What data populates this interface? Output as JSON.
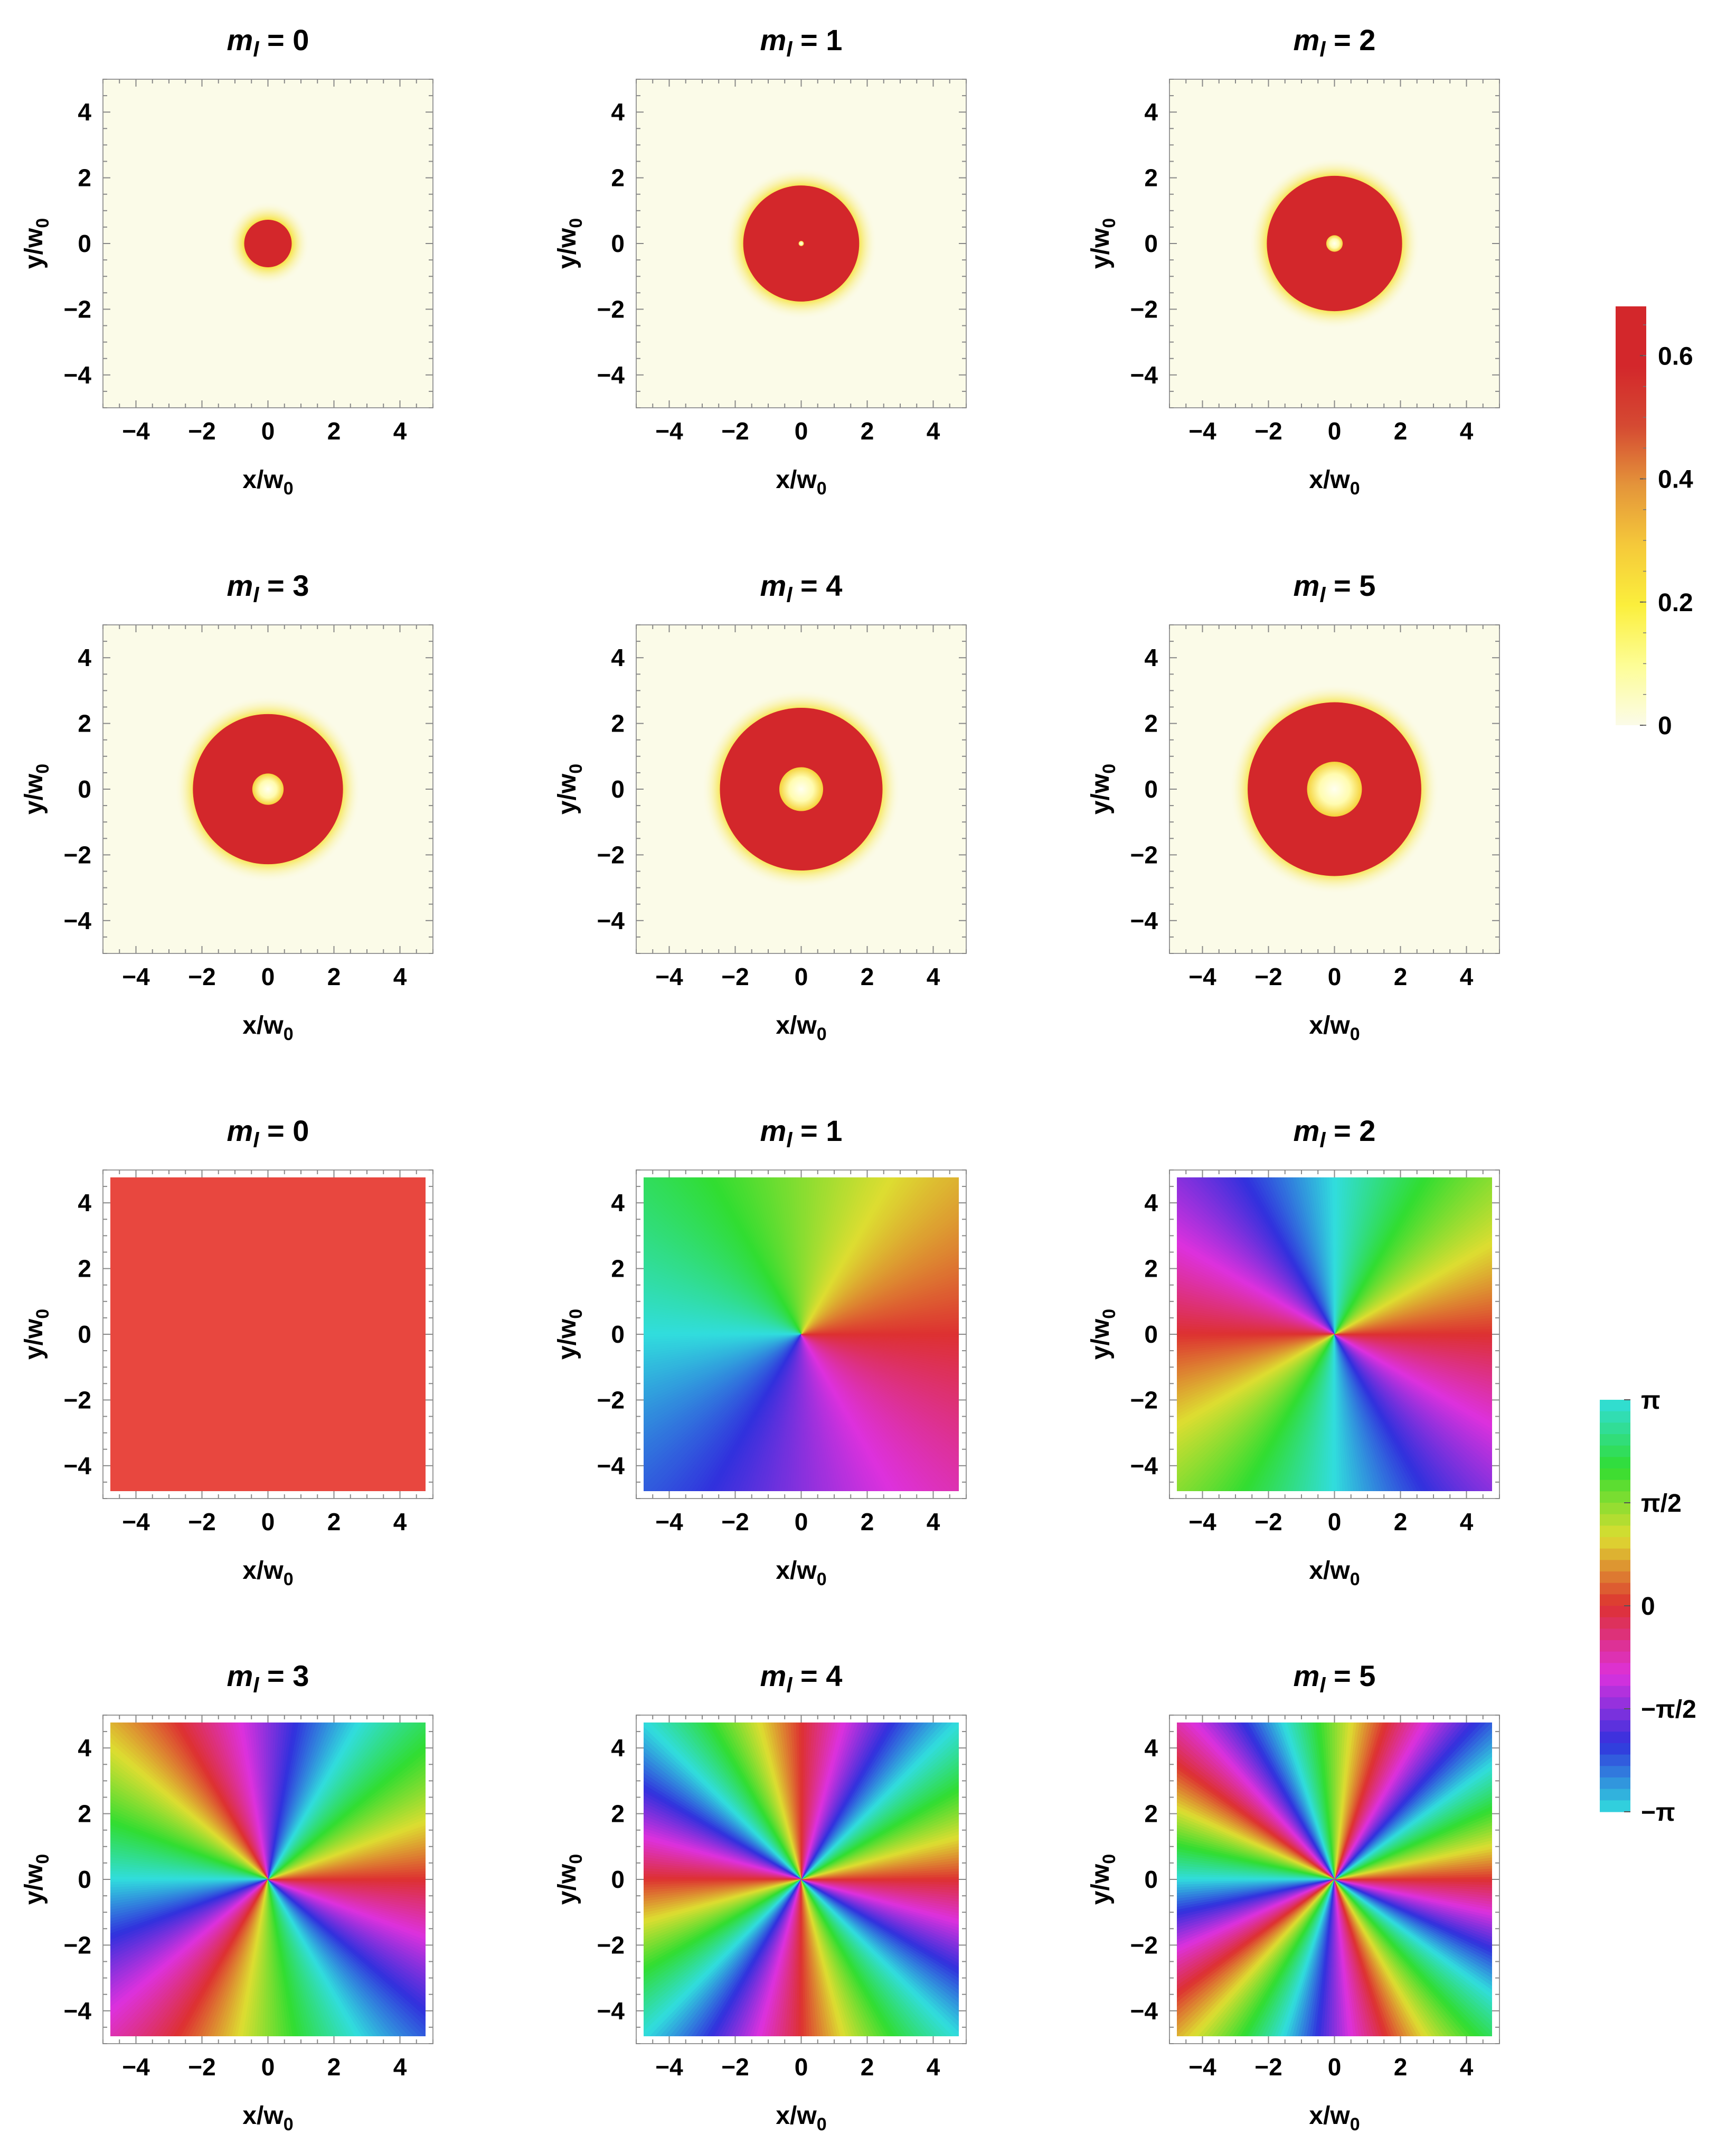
{
  "chart_data": [
    {
      "type": "heatmap",
      "quantity": "intensity",
      "title": "m_l = 0",
      "m_l": 0,
      "xlabel": "x/w0",
      "ylabel": "y/w0",
      "xlim": [
        -5,
        5
      ],
      "ylim": [
        -5,
        5
      ],
      "xticks": [
        "−4",
        "−2",
        "0",
        "2",
        "4"
      ],
      "yticks": [
        "4",
        "2",
        "0",
        "−2",
        "−4"
      ]
    },
    {
      "type": "heatmap",
      "quantity": "intensity",
      "title": "m_l = 1",
      "m_l": 1,
      "xlabel": "x/w0",
      "ylabel": "y/w0",
      "xlim": [
        -5,
        5
      ],
      "ylim": [
        -5,
        5
      ],
      "xticks": [
        "−4",
        "−2",
        "0",
        "2",
        "4"
      ],
      "yticks": [
        "4",
        "2",
        "0",
        "−2",
        "−4"
      ]
    },
    {
      "type": "heatmap",
      "quantity": "intensity",
      "title": "m_l = 2",
      "m_l": 2,
      "xlabel": "x/w0",
      "ylabel": "y/w0",
      "xlim": [
        -5,
        5
      ],
      "ylim": [
        -5,
        5
      ],
      "xticks": [
        "−4",
        "−2",
        "0",
        "2",
        "4"
      ],
      "yticks": [
        "4",
        "2",
        "0",
        "−2",
        "−4"
      ]
    },
    {
      "type": "heatmap",
      "quantity": "intensity",
      "title": "m_l = 3",
      "m_l": 3,
      "xlabel": "x/w0",
      "ylabel": "y/w0",
      "xlim": [
        -5,
        5
      ],
      "ylim": [
        -5,
        5
      ],
      "xticks": [
        "−4",
        "−2",
        "0",
        "2",
        "4"
      ],
      "yticks": [
        "4",
        "2",
        "0",
        "−2",
        "−4"
      ]
    },
    {
      "type": "heatmap",
      "quantity": "intensity",
      "title": "m_l = 4",
      "m_l": 4,
      "xlabel": "x/w0",
      "ylabel": "y/w0",
      "xlim": [
        -5,
        5
      ],
      "ylim": [
        -5,
        5
      ],
      "xticks": [
        "−4",
        "−2",
        "0",
        "2",
        "4"
      ],
      "yticks": [
        "4",
        "2",
        "0",
        "−2",
        "−4"
      ]
    },
    {
      "type": "heatmap",
      "quantity": "intensity",
      "title": "m_l = 5",
      "m_l": 5,
      "xlabel": "x/w0",
      "ylabel": "y/w0",
      "xlim": [
        -5,
        5
      ],
      "ylim": [
        -5,
        5
      ],
      "xticks": [
        "−4",
        "−2",
        "0",
        "2",
        "4"
      ],
      "yticks": [
        "4",
        "2",
        "0",
        "−2",
        "−4"
      ]
    },
    {
      "type": "heatmap",
      "quantity": "phase",
      "title": "m_l = 0",
      "m_l": 0,
      "xlabel": "x/w0",
      "ylabel": "y/w0",
      "xlim": [
        -5,
        5
      ],
      "ylim": [
        -5,
        5
      ],
      "xticks": [
        "−4",
        "−2",
        "0",
        "2",
        "4"
      ],
      "yticks": [
        "4",
        "2",
        "0",
        "−2",
        "−4"
      ]
    },
    {
      "type": "heatmap",
      "quantity": "phase",
      "title": "m_l = 1",
      "m_l": 1,
      "xlabel": "x/w0",
      "ylabel": "y/w0",
      "xlim": [
        -5,
        5
      ],
      "ylim": [
        -5,
        5
      ],
      "xticks": [
        "−4",
        "−2",
        "0",
        "2",
        "4"
      ],
      "yticks": [
        "4",
        "2",
        "0",
        "−2",
        "−4"
      ]
    },
    {
      "type": "heatmap",
      "quantity": "phase",
      "title": "m_l = 2",
      "m_l": 2,
      "xlabel": "x/w0",
      "ylabel": "y/w0",
      "xlim": [
        -5,
        5
      ],
      "ylim": [
        -5,
        5
      ],
      "xticks": [
        "−4",
        "−2",
        "0",
        "2",
        "4"
      ],
      "yticks": [
        "4",
        "2",
        "0",
        "−2",
        "−4"
      ]
    },
    {
      "type": "heatmap",
      "quantity": "phase",
      "title": "m_l = 3",
      "m_l": 3,
      "xlabel": "x/w0",
      "ylabel": "y/w0",
      "xlim": [
        -5,
        5
      ],
      "ylim": [
        -5,
        5
      ],
      "xticks": [
        "−4",
        "−2",
        "0",
        "2",
        "4"
      ],
      "yticks": [
        "4",
        "2",
        "0",
        "−2",
        "−4"
      ]
    },
    {
      "type": "heatmap",
      "quantity": "phase",
      "title": "m_l = 4",
      "m_l": 4,
      "xlabel": "x/w0",
      "ylabel": "y/w0",
      "xlim": [
        -5,
        5
      ],
      "ylim": [
        -5,
        5
      ],
      "xticks": [
        "−4",
        "−2",
        "0",
        "2",
        "4"
      ],
      "yticks": [
        "4",
        "2",
        "0",
        "−2",
        "−4"
      ]
    },
    {
      "type": "heatmap",
      "quantity": "phase",
      "title": "m_l = 5",
      "m_l": 5,
      "xlabel": "x/w0",
      "ylabel": "y/w0",
      "xlim": [
        -5,
        5
      ],
      "ylim": [
        -5,
        5
      ],
      "xticks": [
        "−4",
        "−2",
        "0",
        "2",
        "4"
      ],
      "yticks": [
        "4",
        "2",
        "0",
        "−2",
        "−4"
      ]
    }
  ],
  "intensity_colorbar": {
    "ticks": [
      "0.6",
      "0.4",
      "0.2",
      "0"
    ],
    "tick_values": [
      0.6,
      0.4,
      0.2,
      0
    ],
    "range": [
      0,
      0.68
    ],
    "colors": [
      "#fbfbe8",
      "#fdfd96",
      "#fbef3c",
      "#f5c93a",
      "#e4953a",
      "#d54a32",
      "#d3272b",
      "#d3272b"
    ]
  },
  "phase_colorbar": {
    "ticks": [
      "π",
      "π/2",
      "0",
      "−π/2",
      "−π"
    ],
    "tick_values": [
      3.1416,
      1.5708,
      0,
      -1.5708,
      -3.1416
    ],
    "range": [
      -3.1416,
      3.1416
    ]
  },
  "colors": {
    "paper": "#fbfbe8",
    "ring": "#d3272b",
    "flat_phase": "#e8473f",
    "frame": "#999999"
  }
}
